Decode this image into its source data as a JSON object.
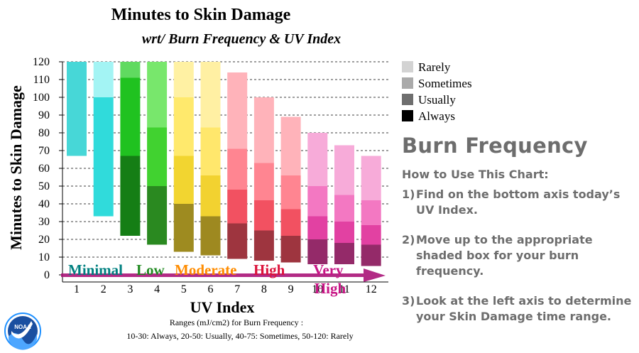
{
  "chart_data": {
    "type": "bar",
    "title": "Minutes to Skin Damage",
    "subtitle": "wrt/ Burn Frequency & UV Index",
    "xlabel": "UV Index",
    "ylabel": "Minutes to Skin Damage",
    "ylim": [
      0,
      120
    ],
    "yticks": [
      "0",
      "10",
      "20",
      "30",
      "40",
      "50",
      "60",
      "70",
      "80",
      "90",
      "100",
      "110",
      "120"
    ],
    "grid": "horizontal dashed",
    "legend_position": "right",
    "categories": [
      "1",
      "2",
      "3",
      "4",
      "5",
      "6",
      "7",
      "8",
      "9",
      "10",
      "11",
      "12"
    ],
    "stacked_ranges": [
      {
        "uv": "1",
        "color": "#00c8c8",
        "segments": [
          {
            "from": 67,
            "to": 120,
            "frequency": "Sometimes"
          }
        ]
      },
      {
        "uv": "2",
        "color": "#33e6e6",
        "segments": [
          {
            "from": 33,
            "to": 100,
            "frequency": "Usually"
          },
          {
            "from": 100,
            "to": 120,
            "frequency": "Rarely"
          }
        ]
      },
      {
        "uv": "3",
        "color": "#22cc22",
        "segments": [
          {
            "from": 22,
            "to": 67,
            "frequency": "Always"
          },
          {
            "from": 67,
            "to": 111,
            "frequency": "Usually"
          },
          {
            "from": 111,
            "to": 120,
            "frequency": "Sometimes"
          }
        ]
      },
      {
        "uv": "4",
        "color": "#44dd33",
        "segments": [
          {
            "from": 17,
            "to": 50,
            "frequency": "Always"
          },
          {
            "from": 50,
            "to": 83,
            "frequency": "Usually"
          },
          {
            "from": 83,
            "to": 120,
            "frequency": "Sometimes"
          }
        ]
      },
      {
        "uv": "5",
        "color": "#ffe033",
        "segments": [
          {
            "from": 13,
            "to": 40,
            "frequency": "Always"
          },
          {
            "from": 40,
            "to": 67,
            "frequency": "Usually"
          },
          {
            "from": 67,
            "to": 100,
            "frequency": "Sometimes"
          },
          {
            "from": 100,
            "to": 120,
            "frequency": "Rarely"
          }
        ]
      },
      {
        "uv": "6",
        "color": "#ffdd33",
        "segments": [
          {
            "from": 11,
            "to": 33,
            "frequency": "Always"
          },
          {
            "from": 33,
            "to": 56,
            "frequency": "Usually"
          },
          {
            "from": 56,
            "to": 83,
            "frequency": "Sometimes"
          },
          {
            "from": 83,
            "to": 120,
            "frequency": "Rarely"
          }
        ]
      },
      {
        "uv": "7",
        "color": "#ff5566",
        "segments": [
          {
            "from": 9,
            "to": 29,
            "frequency": "Always"
          },
          {
            "from": 29,
            "to": 48,
            "frequency": "Usually"
          },
          {
            "from": 48,
            "to": 71,
            "frequency": "Sometimes"
          },
          {
            "from": 71,
            "to": 114,
            "frequency": "Rarely"
          }
        ]
      },
      {
        "uv": "8",
        "color": "#ff5566",
        "segments": [
          {
            "from": 8,
            "to": 25,
            "frequency": "Always"
          },
          {
            "from": 25,
            "to": 42,
            "frequency": "Usually"
          },
          {
            "from": 42,
            "to": 63,
            "frequency": "Sometimes"
          },
          {
            "from": 63,
            "to": 100,
            "frequency": "Rarely"
          }
        ]
      },
      {
        "uv": "9",
        "color": "#ff5566",
        "segments": [
          {
            "from": 7,
            "to": 22,
            "frequency": "Always"
          },
          {
            "from": 22,
            "to": 37,
            "frequency": "Usually"
          },
          {
            "from": 37,
            "to": 56,
            "frequency": "Sometimes"
          },
          {
            "from": 56,
            "to": 89,
            "frequency": "Rarely"
          }
        ]
      },
      {
        "uv": "10",
        "color": "#ee44aa",
        "segments": [
          {
            "from": 6,
            "to": 20,
            "frequency": "Always"
          },
          {
            "from": 20,
            "to": 33,
            "frequency": "Usually"
          },
          {
            "from": 33,
            "to": 50,
            "frequency": "Sometimes"
          },
          {
            "from": 50,
            "to": 80,
            "frequency": "Rarely"
          }
        ]
      },
      {
        "uv": "11",
        "color": "#ee44aa",
        "segments": [
          {
            "from": 6,
            "to": 18,
            "frequency": "Always"
          },
          {
            "from": 18,
            "to": 30,
            "frequency": "Usually"
          },
          {
            "from": 30,
            "to": 45,
            "frequency": "Sometimes"
          },
          {
            "from": 45,
            "to": 73,
            "frequency": "Rarely"
          }
        ]
      },
      {
        "uv": "12",
        "color": "#ee44aa",
        "segments": [
          {
            "from": 5,
            "to": 17,
            "frequency": "Always"
          },
          {
            "from": 17,
            "to": 28,
            "frequency": "Usually"
          },
          {
            "from": 28,
            "to": 42,
            "frequency": "Sometimes"
          },
          {
            "from": 42,
            "to": 67,
            "frequency": "Rarely"
          }
        ]
      }
    ],
    "legend": [
      {
        "label": "Rarely",
        "color": "#d3d3d3"
      },
      {
        "label": "Sometimes",
        "color": "#aaaaaa"
      },
      {
        "label": "Usually",
        "color": "#6e6e6e"
      },
      {
        "label": "Always",
        "color": "#000000"
      }
    ],
    "uv_categories": [
      {
        "label": "Minimal",
        "color": "#008080"
      },
      {
        "label": "Low",
        "color": "#228b22"
      },
      {
        "label": "Moderate",
        "color": "#ff8c00"
      },
      {
        "label": "High",
        "color": "#dc143c"
      },
      {
        "label": "Very High",
        "color": "#c71585"
      }
    ],
    "note_line1": "Ranges (mJ/cm2) for Burn Frequency :",
    "note_line2": "10-30: Always, 20-50: Usually, 40-75: Sometimes, 50-120: Rarely"
  },
  "guide": {
    "title": "Burn Frequency",
    "heading": "How to Use This Chart:",
    "steps": [
      {
        "num": "1)",
        "text": "Find on the bottom axis today’s UV Index."
      },
      {
        "num": "2)",
        "text": "Move up to the appropriate shaded box for your burn frequency."
      },
      {
        "num": "3)",
        "text": "Look at the left axis to determine your Skin Damage time range."
      }
    ]
  },
  "logo": {
    "text": "NOAA"
  }
}
